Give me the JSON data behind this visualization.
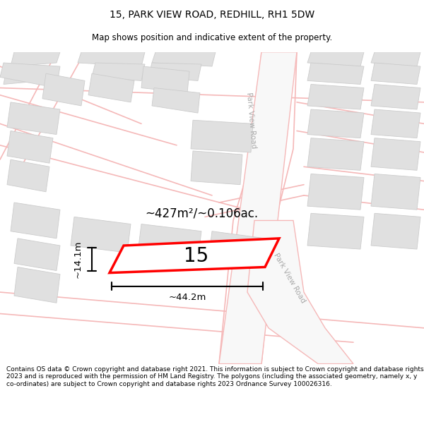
{
  "title": "15, PARK VIEW ROAD, REDHILL, RH1 5DW",
  "subtitle": "Map shows position and indicative extent of the property.",
  "footer": "Contains OS data © Crown copyright and database right 2021. This information is subject to Crown copyright and database rights 2023 and is reproduced with the permission of HM Land Registry. The polygons (including the associated geometry, namely x, y co-ordinates) are subject to Crown copyright and database rights 2023 Ordnance Survey 100026316.",
  "bg_color": "#ffffff",
  "map_bg": "#ffffff",
  "road_color": "#f5b8b8",
  "road_color2": "#e8a0a0",
  "building_fill": "#e0e0e0",
  "building_edge": "#cccccc",
  "plot_fill": "#ffffff",
  "plot_edge": "#ff0000",
  "plot_label": "15",
  "area_text": "~427m²/~0.106ac.",
  "dim_width": "~44.2m",
  "dim_height": "~14.1m",
  "road_label": "Park View Road",
  "title_fontsize": 10,
  "subtitle_fontsize": 8.5,
  "footer_fontsize": 6.5
}
